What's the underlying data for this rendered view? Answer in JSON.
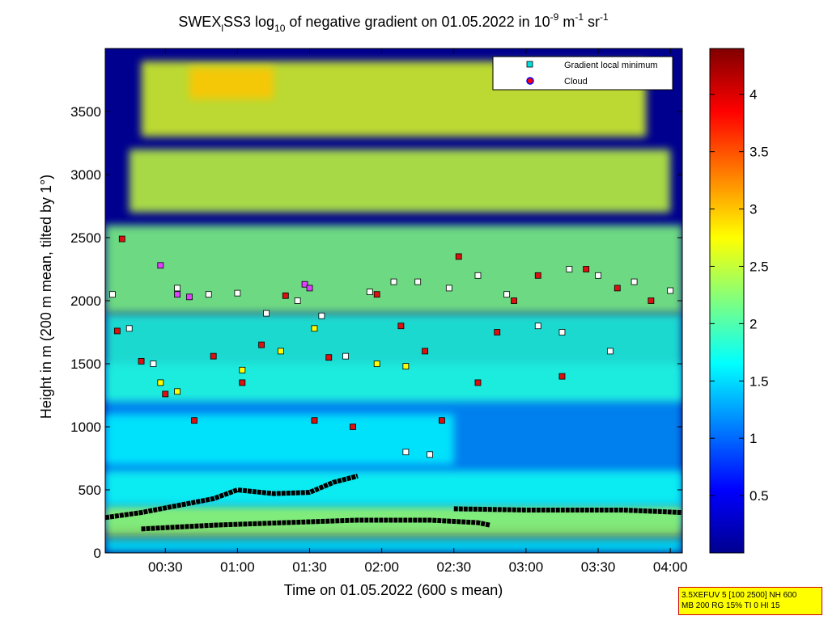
{
  "chart_data": {
    "type": "heatmap",
    "title": {
      "part1": "SWEX",
      "sub1": "l",
      "part2": "SS3 log",
      "sub2": "10",
      "part3": " of negative gradient on 01.05.2022 in 10",
      "sup1": "-9",
      "part4": " m",
      "sup2": "-1",
      "part5": " sr",
      "sup3": "-1"
    },
    "xlabel": "Time on 01.05.2022 (600 s mean)",
    "ylabel": "Height in m (200 m mean, tilted by 1°)",
    "x_range_minutes": [
      5,
      245
    ],
    "y_range_m": [
      0,
      4000
    ],
    "x_ticks": [
      {
        "minutes": 30,
        "label": "00:30"
      },
      {
        "minutes": 60,
        "label": "01:00"
      },
      {
        "minutes": 90,
        "label": "01:30"
      },
      {
        "minutes": 120,
        "label": "02:00"
      },
      {
        "minutes": 150,
        "label": "02:30"
      },
      {
        "minutes": 180,
        "label": "03:00"
      },
      {
        "minutes": 210,
        "label": "03:30"
      },
      {
        "minutes": 240,
        "label": "04:00"
      }
    ],
    "y_ticks": [
      0,
      500,
      1000,
      1500,
      2000,
      2500,
      3000,
      3500
    ],
    "colorbar": {
      "range": [
        0,
        4.4
      ],
      "ticks": [
        0.5,
        1,
        1.5,
        2,
        2.5,
        3,
        3.5,
        4
      ],
      "colormap": "jet"
    },
    "legend": {
      "position": "top-right",
      "entries": [
        {
          "label": "Gradient local minimum",
          "marker": "square",
          "color": "#00e0e0"
        },
        {
          "label": "Cloud",
          "marker": "circle",
          "color": "#ff0000",
          "edge": "#0000ff"
        }
      ]
    },
    "layers": [
      {
        "h0": 200,
        "h1": 1500,
        "t0": 5,
        "t1": 245,
        "value": 1.2
      },
      {
        "h0": 0,
        "h1": 120,
        "t0": 5,
        "t1": 245,
        "value": 1.6
      },
      {
        "h0": 120,
        "h1": 380,
        "t0": 5,
        "t1": 245,
        "value": 2.3
      },
      {
        "h0": 380,
        "h1": 650,
        "t0": 5,
        "t1": 245,
        "value": 1.7
      },
      {
        "h0": 700,
        "h1": 1100,
        "t0": 5,
        "t1": 150,
        "value": 1.6
      },
      {
        "h0": 1200,
        "h1": 1900,
        "t0": 5,
        "t1": 245,
        "value": 1.8
      },
      {
        "h0": 1900,
        "h1": 2600,
        "t0": 5,
        "t1": 245,
        "value": 2.2
      },
      {
        "h0": 2700,
        "h1": 3200,
        "t0": 15,
        "t1": 240,
        "value": 2.5
      },
      {
        "h0": 3300,
        "h1": 3900,
        "t0": 20,
        "t1": 230,
        "value": 2.6
      },
      {
        "h0": 3600,
        "h1": 3850,
        "t0": 40,
        "t1": 75,
        "value": 3.0
      }
    ],
    "boundaries": [
      {
        "name": "lower",
        "points": [
          [
            5,
            280
          ],
          [
            20,
            320
          ],
          [
            50,
            430
          ],
          [
            60,
            500
          ],
          [
            75,
            470
          ],
          [
            90,
            480
          ],
          [
            100,
            560
          ],
          [
            110,
            610
          ]
        ],
        "color": "#000000"
      },
      {
        "name": "surface",
        "points": [
          [
            20,
            190
          ],
          [
            50,
            220
          ],
          [
            80,
            240
          ],
          [
            110,
            260
          ],
          [
            140,
            260
          ],
          [
            160,
            240
          ],
          [
            165,
            220
          ]
        ],
        "color": "#000000"
      },
      {
        "name": "upper",
        "points": [
          [
            150,
            350
          ],
          [
            180,
            340
          ],
          [
            200,
            340
          ],
          [
            220,
            340
          ],
          [
            245,
            320
          ]
        ],
        "color": "#000000"
      }
    ],
    "markers": {
      "minimum": [
        [
          8,
          2050
        ],
        [
          15,
          1780
        ],
        [
          25,
          1500
        ],
        [
          35,
          2100
        ],
        [
          48,
          2050
        ],
        [
          60,
          2060
        ],
        [
          72,
          1900
        ],
        [
          85,
          2000
        ],
        [
          95,
          1880
        ],
        [
          105,
          1560
        ],
        [
          115,
          2070
        ],
        [
          125,
          2150
        ],
        [
          135,
          2150
        ],
        [
          148,
          2100
        ],
        [
          160,
          2200
        ],
        [
          172,
          2050
        ],
        [
          185,
          1800
        ],
        [
          198,
          2250
        ],
        [
          210,
          2200
        ],
        [
          225,
          2150
        ],
        [
          240,
          2080
        ],
        [
          130,
          800
        ],
        [
          140,
          780
        ],
        [
          195,
          1750
        ],
        [
          215,
          1600
        ]
      ],
      "cloud": [
        [
          10,
          1760
        ],
        [
          12,
          2490
        ],
        [
          20,
          1520
        ],
        [
          30,
          1260
        ],
        [
          42,
          1050
        ],
        [
          50,
          1560
        ],
        [
          62,
          1350
        ],
        [
          70,
          1650
        ],
        [
          80,
          2040
        ],
        [
          92,
          1050
        ],
        [
          98,
          1550
        ],
        [
          108,
          1000
        ],
        [
          118,
          2050
        ],
        [
          128,
          1800
        ],
        [
          138,
          1600
        ],
        [
          145,
          1050
        ],
        [
          152,
          2350
        ],
        [
          160,
          1350
        ],
        [
          168,
          1750
        ],
        [
          175,
          2000
        ],
        [
          185,
          2200
        ],
        [
          195,
          1400
        ],
        [
          205,
          2250
        ],
        [
          218,
          2100
        ],
        [
          232,
          2000
        ]
      ],
      "purple": [
        [
          28,
          2280
        ],
        [
          35,
          2050
        ],
        [
          40,
          2030
        ],
        [
          88,
          2130
        ],
        [
          90,
          2100
        ]
      ],
      "yellow": [
        [
          28,
          1350
        ],
        [
          35,
          1280
        ],
        [
          62,
          1450
        ],
        [
          78,
          1600
        ],
        [
          92,
          1780
        ],
        [
          118,
          1500
        ],
        [
          130,
          1480
        ]
      ]
    }
  },
  "stamp": {
    "line1": "3.5XEFUV 5 [100 2500] NH 600",
    "line2": "MB 200 RG 15% TI 0 HI 15"
  }
}
